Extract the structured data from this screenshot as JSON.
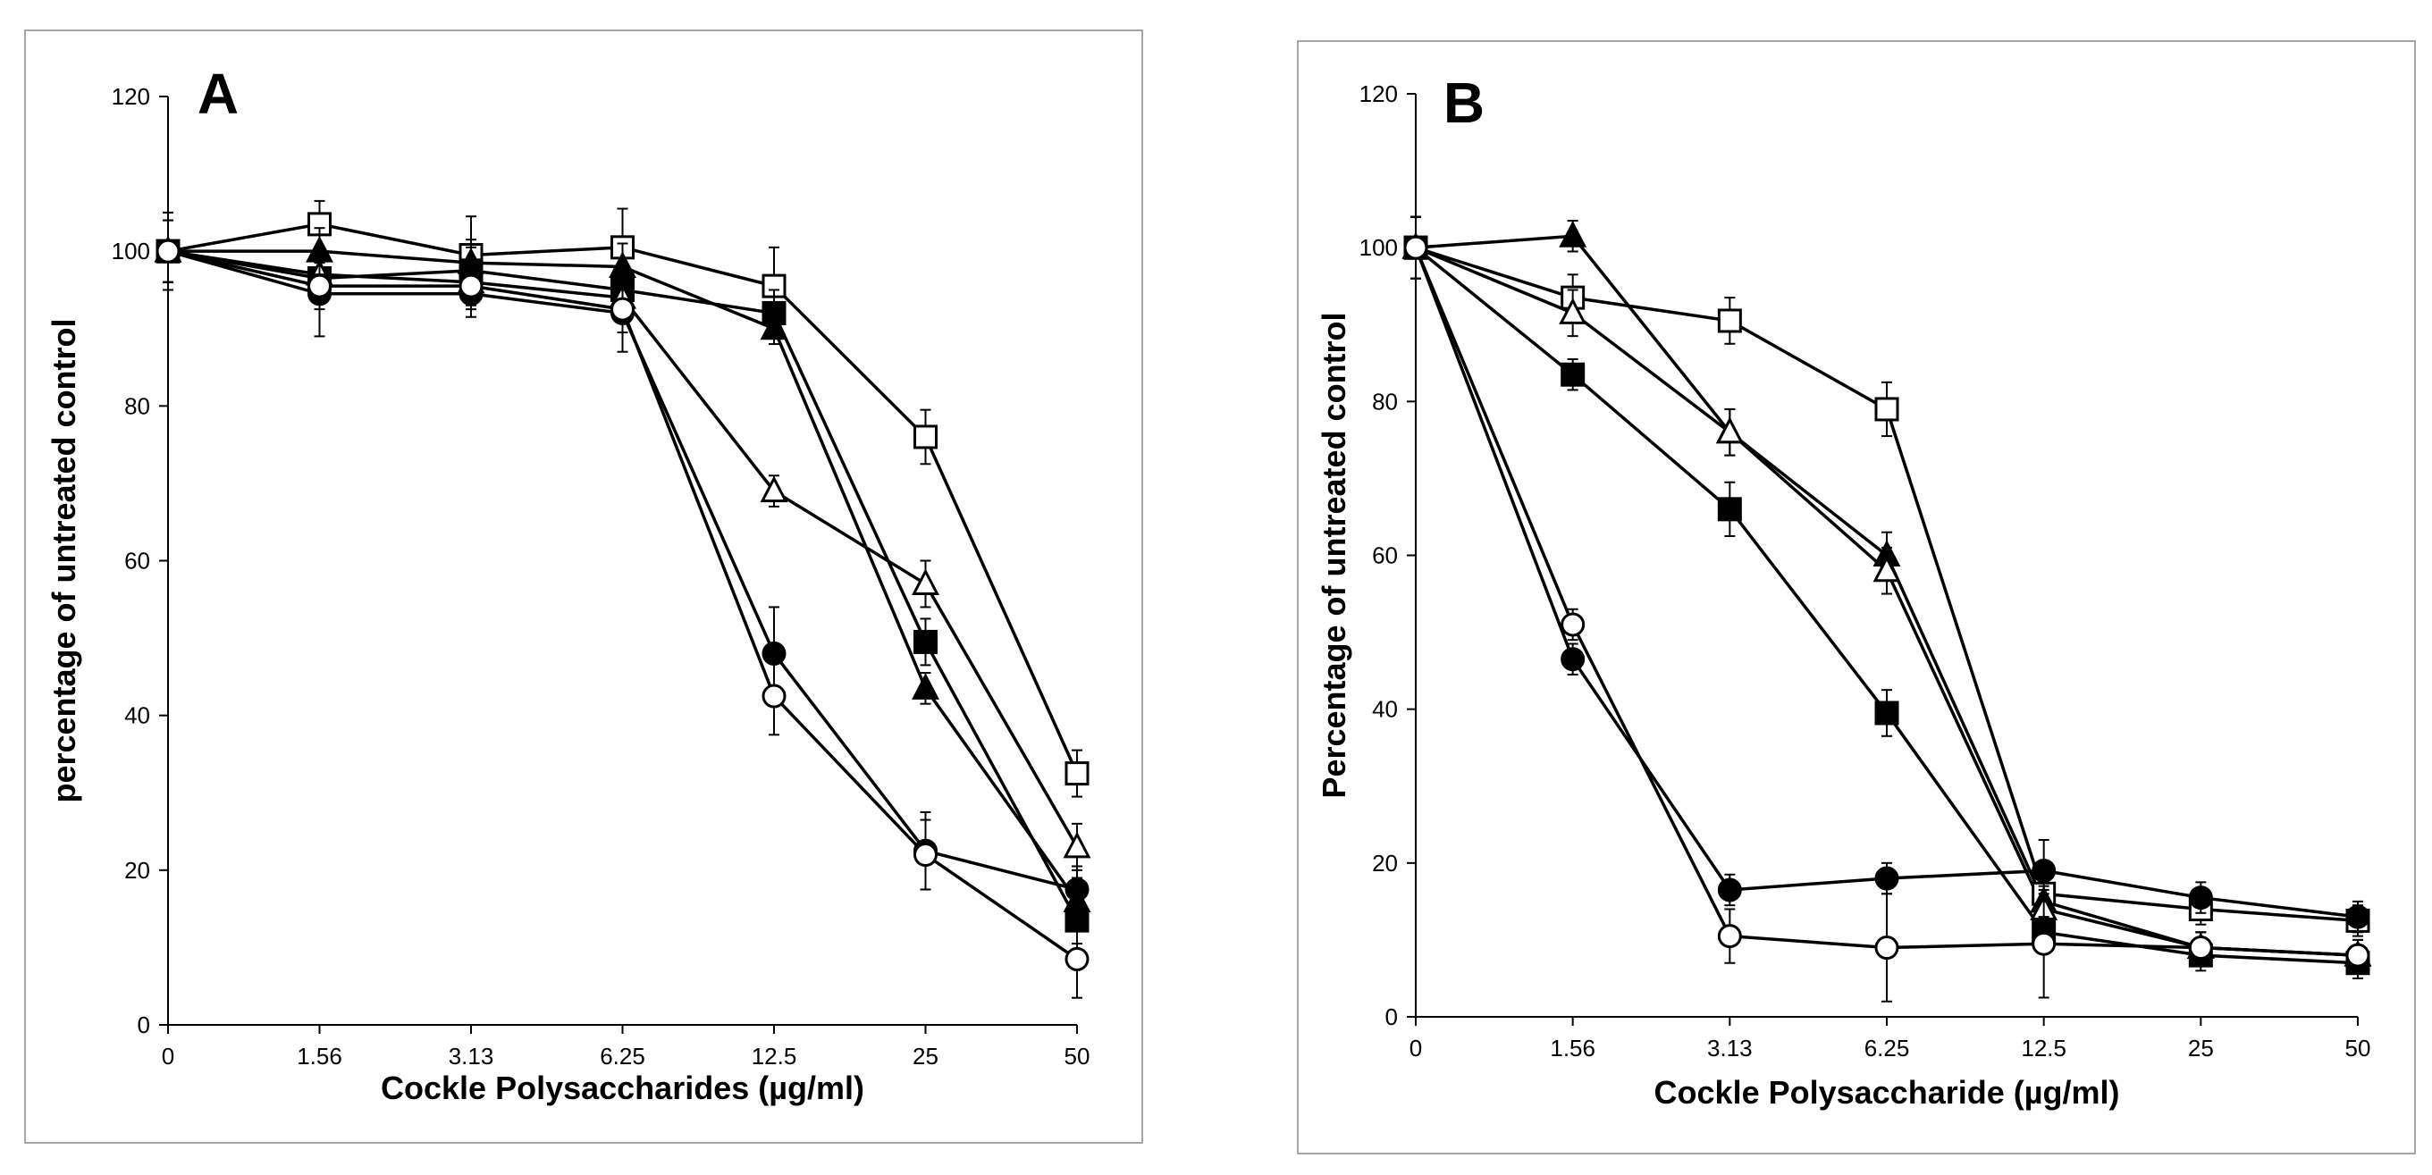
{
  "chart_data": [
    {
      "type": "line",
      "title": "A",
      "xlabel": "Cockle Polysaccharides (µg/ml)",
      "ylabel": "percentage of untreated control",
      "categories": [
        "0",
        "1.56",
        "3.13",
        "6.25",
        "12.5",
        "25",
        "50"
      ],
      "ylim": [
        0,
        120
      ],
      "yticks": [
        "0",
        "20",
        "40",
        "60",
        "80",
        "100",
        "120"
      ],
      "grid": false,
      "series": [
        {
          "name": "open square",
          "marker": "square-open",
          "values": [
            100,
            103.5,
            99.5,
            100.5,
            95.5,
            76,
            32.5
          ],
          "errors": [
            5,
            3,
            5,
            5,
            5,
            3.5,
            3
          ]
        },
        {
          "name": "filled square",
          "marker": "square-filled",
          "values": [
            100,
            96.5,
            97.5,
            95,
            92,
            49.5,
            13.5
          ],
          "errors": [
            4,
            3,
            3,
            3,
            3,
            3,
            3
          ]
        },
        {
          "name": "open triangle",
          "marker": "triangle-open",
          "values": [
            100,
            97,
            96,
            94,
            69,
            57,
            23
          ],
          "errors": [
            4,
            3,
            3,
            3,
            2,
            3,
            3
          ]
        },
        {
          "name": "filled triangle",
          "marker": "triangle-filled",
          "values": [
            100,
            100,
            98.5,
            98,
            90,
            43.5,
            16
          ],
          "errors": [
            4,
            3,
            3,
            3,
            2,
            2,
            3
          ]
        },
        {
          "name": "filled circle",
          "marker": "circle-filled",
          "values": [
            100,
            94.5,
            94.5,
            92,
            48,
            22.5,
            17.5
          ],
          "errors": [
            4,
            5.5,
            3,
            5,
            6,
            5,
            3
          ]
        },
        {
          "name": "open circle",
          "marker": "circle-open",
          "values": [
            100,
            95.5,
            95.5,
            92.5,
            42.5,
            22,
            8.5
          ],
          "errors": [
            4,
            3,
            3,
            3,
            5,
            4.5,
            5
          ]
        }
      ]
    },
    {
      "type": "line",
      "title": "B",
      "xlabel": "Cockle Polysaccharide (µg/ml)",
      "ylabel": "Percentage of untreated control",
      "categories": [
        "0",
        "1.56",
        "3.13",
        "6.25",
        "12.5",
        "25",
        "50"
      ],
      "ylim": [
        0,
        120
      ],
      "yticks": [
        "0",
        "20",
        "40",
        "60",
        "80",
        "100",
        "120"
      ],
      "grid": false,
      "series": [
        {
          "name": "open square",
          "marker": "square-open",
          "values": [
            100,
            93.5,
            90.5,
            79,
            16,
            14,
            12.5
          ],
          "errors": [
            4,
            3,
            3,
            3.5,
            2,
            2,
            2
          ]
        },
        {
          "name": "filled triangle",
          "marker": "triangle-filled",
          "values": [
            100,
            101.5,
            76,
            60,
            15,
            9,
            8
          ],
          "errors": [
            4,
            2,
            3,
            3,
            2,
            2,
            2
          ]
        },
        {
          "name": "open triangle",
          "marker": "triangle-open",
          "values": [
            100,
            91.5,
            76,
            58,
            14,
            9,
            8
          ],
          "errors": [
            4,
            3,
            3,
            3,
            2,
            2,
            2
          ]
        },
        {
          "name": "filled square",
          "marker": "square-filled",
          "values": [
            100,
            83.5,
            66,
            39.5,
            11,
            8,
            7
          ],
          "errors": [
            4,
            2,
            3.5,
            3,
            2,
            2,
            2
          ]
        },
        {
          "name": "filled circle",
          "marker": "circle-filled",
          "values": [
            100,
            46.5,
            16.5,
            18,
            19,
            15.5,
            13
          ],
          "errors": [
            4,
            2,
            2,
            2,
            4,
            2,
            2
          ]
        },
        {
          "name": "open circle",
          "marker": "circle-open",
          "values": [
            100,
            51,
            10.5,
            9,
            9.5,
            9,
            8
          ],
          "errors": [
            4,
            2,
            3.5,
            7,
            7,
            2,
            2
          ]
        }
      ]
    }
  ]
}
